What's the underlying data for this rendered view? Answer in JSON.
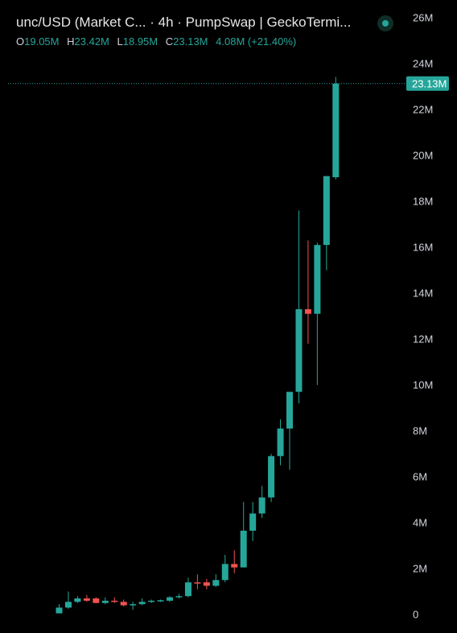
{
  "header": {
    "title": "unc/USD (Market C...",
    "interval": " · 4h · ",
    "source": "PumpSwap | GeckoTermi...",
    "ohlc": {
      "o_label": "O",
      "o_value": "19.05M",
      "h_label": "H",
      "h_value": "23.42M",
      "l_label": "L",
      "l_value": "18.95M",
      "c_label": "C",
      "c_value": "23.13M",
      "change": "4.08M (+21.40%)"
    }
  },
  "last_price": {
    "label": "23.13M",
    "value": 23.13
  },
  "colors": {
    "up": "#26a69a",
    "down": "#ef5350",
    "background": "#000000"
  },
  "chart_data": {
    "type": "candlestick",
    "unit": "M",
    "y_ticks": [
      {
        "value": 26,
        "label": "26M"
      },
      {
        "value": 24,
        "label": "24M"
      },
      {
        "value": 22,
        "label": "22M"
      },
      {
        "value": 20,
        "label": "20M"
      },
      {
        "value": 18,
        "label": "18M"
      },
      {
        "value": 16,
        "label": "16M"
      },
      {
        "value": 14,
        "label": "14M"
      },
      {
        "value": 12,
        "label": "12M"
      },
      {
        "value": 10,
        "label": "10M"
      },
      {
        "value": 8,
        "label": "8M"
      },
      {
        "value": 6,
        "label": "6M"
      },
      {
        "value": 4,
        "label": "4M"
      },
      {
        "value": 2,
        "label": "2M"
      },
      {
        "value": 0,
        "label": "0"
      }
    ],
    "ylim": [
      0,
      26
    ],
    "candles": [
      {
        "o": 0.05,
        "h": 0.45,
        "l": 0.05,
        "c": 0.3
      },
      {
        "o": 0.3,
        "h": 1.0,
        "l": 0.25,
        "c": 0.55
      },
      {
        "o": 0.55,
        "h": 0.8,
        "l": 0.5,
        "c": 0.7
      },
      {
        "o": 0.7,
        "h": 0.85,
        "l": 0.55,
        "c": 0.6
      },
      {
        "o": 0.7,
        "h": 0.75,
        "l": 0.5,
        "c": 0.5
      },
      {
        "o": 0.5,
        "h": 0.75,
        "l": 0.45,
        "c": 0.6
      },
      {
        "o": 0.6,
        "h": 0.75,
        "l": 0.5,
        "c": 0.55
      },
      {
        "o": 0.55,
        "h": 0.65,
        "l": 0.35,
        "c": 0.4
      },
      {
        "o": 0.4,
        "h": 0.55,
        "l": 0.2,
        "c": 0.45
      },
      {
        "o": 0.45,
        "h": 0.7,
        "l": 0.4,
        "c": 0.55
      },
      {
        "o": 0.55,
        "h": 0.65,
        "l": 0.5,
        "c": 0.6
      },
      {
        "o": 0.6,
        "h": 0.65,
        "l": 0.55,
        "c": 0.62
      },
      {
        "o": 0.6,
        "h": 0.8,
        "l": 0.55,
        "c": 0.75
      },
      {
        "o": 0.75,
        "h": 0.9,
        "l": 0.7,
        "c": 0.8
      },
      {
        "o": 0.8,
        "h": 1.6,
        "l": 0.75,
        "c": 1.4
      },
      {
        "o": 1.4,
        "h": 1.75,
        "l": 1.1,
        "c": 1.35
      },
      {
        "o": 1.4,
        "h": 1.55,
        "l": 1.1,
        "c": 1.25
      },
      {
        "o": 1.25,
        "h": 1.75,
        "l": 1.2,
        "c": 1.5
      },
      {
        "o": 1.5,
        "h": 2.6,
        "l": 1.4,
        "c": 2.2
      },
      {
        "o": 2.2,
        "h": 2.8,
        "l": 1.8,
        "c": 2.05
      },
      {
        "o": 2.05,
        "h": 4.9,
        "l": 2.05,
        "c": 3.65
      },
      {
        "o": 3.65,
        "h": 4.9,
        "l": 3.2,
        "c": 4.4
      },
      {
        "o": 4.4,
        "h": 5.6,
        "l": 4.2,
        "c": 5.1
      },
      {
        "o": 5.1,
        "h": 7.0,
        "l": 4.9,
        "c": 6.9
      },
      {
        "o": 6.9,
        "h": 8.5,
        "l": 6.5,
        "c": 8.1
      },
      {
        "o": 8.1,
        "h": 9.6,
        "l": 6.3,
        "c": 9.7
      },
      {
        "o": 9.7,
        "h": 17.6,
        "l": 9.2,
        "c": 13.3
      },
      {
        "o": 13.3,
        "h": 16.3,
        "l": 11.8,
        "c": 13.1
      },
      {
        "o": 13.1,
        "h": 16.2,
        "l": 10.0,
        "c": 16.1
      },
      {
        "o": 16.1,
        "h": 19.1,
        "l": 15.0,
        "c": 19.1
      },
      {
        "o": 19.05,
        "h": 23.42,
        "l": 18.95,
        "c": 23.13
      }
    ]
  }
}
